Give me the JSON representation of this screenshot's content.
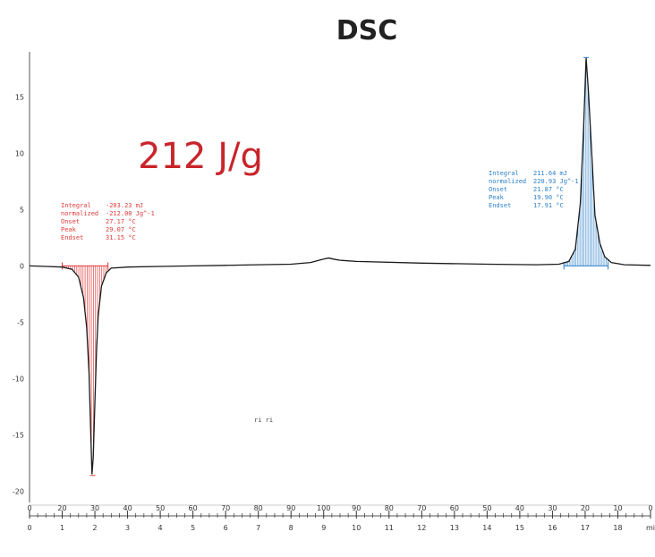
{
  "chart_data": {
    "type": "line",
    "title": "DSC",
    "xlim": [
      0,
      19
    ],
    "ylim": [
      -21,
      19
    ],
    "y_ticks": [
      {
        "value": 15,
        "label": "15"
      },
      {
        "value": 10,
        "label": "10"
      },
      {
        "value": 5,
        "label": "5"
      },
      {
        "value": 0,
        "label": "0"
      },
      {
        "value": -5,
        "label": "-5"
      },
      {
        "value": -10,
        "label": "-10"
      },
      {
        "value": -15,
        "label": "-15"
      },
      {
        "value": -20,
        "label": "-20"
      }
    ],
    "x_ticks": [
      {
        "value": 0,
        "label": "0"
      },
      {
        "value": 1,
        "label": "1"
      },
      {
        "value": 2,
        "label": "2"
      },
      {
        "value": 3,
        "label": "3"
      },
      {
        "value": 4,
        "label": "4"
      },
      {
        "value": 5,
        "label": "5"
      },
      {
        "value": 6,
        "label": "6"
      },
      {
        "value": 7,
        "label": "7"
      },
      {
        "value": 8,
        "label": "8"
      },
      {
        "value": 9,
        "label": "9"
      },
      {
        "value": 10,
        "label": "10"
      },
      {
        "value": 11,
        "label": "11"
      },
      {
        "value": 12,
        "label": "12"
      },
      {
        "value": 13,
        "label": "13"
      },
      {
        "value": 14,
        "label": "14"
      },
      {
        "value": 15,
        "label": "15"
      },
      {
        "value": 16,
        "label": "16"
      },
      {
        "value": 17,
        "label": "17"
      },
      {
        "value": 18,
        "label": "18"
      },
      {
        "value": 19,
        "label": "mi"
      }
    ],
    "temp_ticks": [
      {
        "value": 0,
        "label": "0"
      },
      {
        "value": 1,
        "label": "20"
      },
      {
        "value": 2,
        "label": "30"
      },
      {
        "value": 3,
        "label": "40"
      },
      {
        "value": 4,
        "label": "50"
      },
      {
        "value": 5,
        "label": "60"
      },
      {
        "value": 6,
        "label": "70"
      },
      {
        "value": 7,
        "label": "80"
      },
      {
        "value": 8,
        "label": "90"
      },
      {
        "value": 9,
        "label": "100"
      },
      {
        "value": 10,
        "label": "90"
      },
      {
        "value": 11,
        "label": "80"
      },
      {
        "value": 12,
        "label": "70"
      },
      {
        "value": 13,
        "label": "60"
      },
      {
        "value": 14,
        "label": "50"
      },
      {
        "value": 15,
        "label": "40"
      },
      {
        "value": 16,
        "label": "30"
      },
      {
        "value": 17,
        "label": "20"
      },
      {
        "value": 18,
        "label": "10"
      },
      {
        "value": 19,
        "label": "0"
      }
    ],
    "series": [
      {
        "values_x": [
          0,
          0.5,
          1.0,
          1.3,
          1.5,
          1.65,
          1.75,
          1.82,
          1.87,
          1.91,
          1.95,
          2.0,
          2.05,
          2.1,
          2.2,
          2.35,
          2.5,
          3.0,
          4.0,
          5.0,
          6.0,
          7.0,
          8.0,
          8.6,
          9.0,
          9.15,
          9.3,
          9.5,
          10.0,
          12.0,
          14.0,
          15.5,
          16.2,
          16.5,
          16.7,
          16.85,
          16.95,
          17.03,
          17.1,
          17.2,
          17.3,
          17.45,
          17.6,
          17.8,
          18.2,
          19.0
        ],
        "values_y": [
          0.0,
          -0.05,
          -0.1,
          -0.3,
          -1.0,
          -2.8,
          -5.5,
          -9.5,
          -14.5,
          -18.5,
          -17.0,
          -12.0,
          -7.5,
          -4.5,
          -1.8,
          -0.6,
          -0.2,
          -0.1,
          -0.05,
          0.0,
          0.05,
          0.1,
          0.15,
          0.3,
          0.6,
          0.7,
          0.6,
          0.5,
          0.4,
          0.25,
          0.15,
          0.1,
          0.15,
          0.4,
          1.5,
          5.5,
          12.0,
          18.5,
          15.5,
          10.0,
          4.5,
          2.0,
          0.8,
          0.3,
          0.1,
          0.05
        ]
      }
    ],
    "big_label": "212 J/g",
    "peak_markers": [
      {
        "x": 1.93,
        "y": -18.6
      },
      {
        "x": 17.03,
        "y": 18.5
      }
    ],
    "integration_windows": [
      {
        "x_start": 1.0,
        "x_end": 2.4,
        "color": "#e03a3a"
      },
      {
        "x_start": 16.35,
        "x_end": 17.7,
        "color": "#2a7fc9"
      }
    ],
    "annotations": [
      {
        "color": "#e03a3a",
        "rows": [
          {
            "label": "Integral",
            "value": "-203.23 mJ"
          },
          {
            "label": "  normalized",
            "value": "-212.00 Jg^-1"
          },
          {
            "label": "Onset",
            "value": "27.17 °C"
          },
          {
            "label": "Peak",
            "value": "29.07 °C"
          },
          {
            "label": "Endset",
            "value": "31.15 °C"
          }
        ]
      },
      {
        "color": "#2a7fc9",
        "rows": [
          {
            "label": "Integral",
            "value": "211.64 mJ"
          },
          {
            "label": "  normalized",
            "value": "220.93 Jg^-1"
          },
          {
            "label": "Onset",
            "value": "21.87 °C"
          },
          {
            "label": "Peak",
            "value": "19.90 °C"
          },
          {
            "label": "Endset",
            "value": "17.91 °C"
          }
        ]
      }
    ],
    "stray_mark": "ri ri",
    "colors": {
      "curve": "#1a1a1a",
      "endo": "#e03a3a",
      "exo": "#2a7fc9",
      "big_label": "#c8252b",
      "axis": "#555555"
    }
  }
}
